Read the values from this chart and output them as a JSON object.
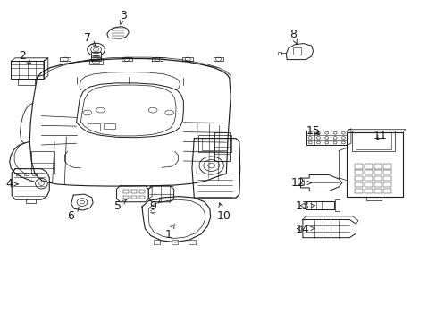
{
  "figsize": [
    4.89,
    3.6
  ],
  "dpi": 100,
  "background_color": "#ffffff",
  "line_color": "#1a1a1a",
  "font_size": 9,
  "label_positions": {
    "1": [
      0.385,
      0.275,
      0.4,
      0.31
    ],
    "2": [
      0.058,
      0.82,
      0.085,
      0.795
    ],
    "3": [
      0.29,
      0.95,
      0.295,
      0.925
    ],
    "4": [
      0.03,
      0.43,
      0.065,
      0.43
    ],
    "5": [
      0.285,
      0.365,
      0.305,
      0.385
    ],
    "6": [
      0.175,
      0.34,
      0.188,
      0.368
    ],
    "7": [
      0.21,
      0.88,
      0.215,
      0.855
    ],
    "8": [
      0.68,
      0.89,
      0.685,
      0.862
    ],
    "9": [
      0.36,
      0.365,
      0.37,
      0.39
    ],
    "10": [
      0.52,
      0.34,
      0.505,
      0.38
    ],
    "11": [
      0.87,
      0.57,
      0.855,
      0.555
    ],
    "12": [
      0.69,
      0.43,
      0.73,
      0.43
    ],
    "13": [
      0.703,
      0.36,
      0.735,
      0.365
    ],
    "14": [
      0.7,
      0.29,
      0.732,
      0.295
    ],
    "15": [
      0.73,
      0.59,
      0.75,
      0.578
    ]
  }
}
